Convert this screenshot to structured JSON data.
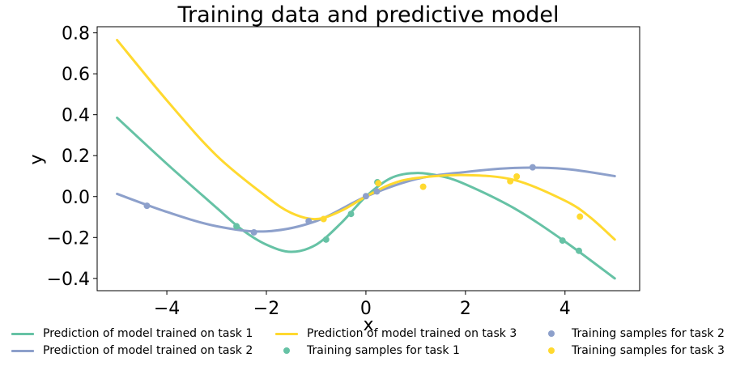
{
  "chart_data": {
    "type": "line",
    "title": "Training data and predictive model",
    "xlabel": "x",
    "ylabel": "y",
    "xlim": [
      -5.4,
      5.5
    ],
    "ylim": [
      -0.46,
      0.83
    ],
    "xticks": [
      -4,
      -2,
      0,
      2,
      4
    ],
    "yticks": [
      -0.4,
      -0.2,
      0.0,
      0.2,
      0.4,
      0.6,
      0.8
    ],
    "xtick_labels": [
      "−4",
      "−2",
      "0",
      "2",
      "4"
    ],
    "ytick_labels": [
      "−0.4",
      "−0.2",
      "0.0",
      "0.2",
      "0.4",
      "0.6",
      "0.8"
    ],
    "grid": false,
    "legend_position": "bottom",
    "colors": {
      "task1": "#66c2a5",
      "task2": "#8da0cb",
      "task3": "#ffd92f"
    },
    "series": [
      {
        "name": "Prediction of model trained on task 1",
        "kind": "line",
        "color": "#66c2a5",
        "x": [
          -5,
          -4,
          -3,
          -2.5,
          -2,
          -1.5,
          -1,
          -0.5,
          0,
          0.5,
          1,
          1.5,
          2,
          3,
          4,
          5
        ],
        "y": [
          0.385,
          0.16,
          -0.055,
          -0.16,
          -0.235,
          -0.27,
          -0.235,
          -0.13,
          0.0,
          0.09,
          0.115,
          0.1,
          0.06,
          -0.06,
          -0.22,
          -0.4
        ]
      },
      {
        "name": "Prediction of model trained on task 2",
        "kind": "line",
        "color": "#8da0cb",
        "x": [
          -5,
          -4,
          -3,
          -2,
          -1,
          0,
          1,
          2,
          3,
          4,
          5
        ],
        "y": [
          0.013,
          -0.075,
          -0.145,
          -0.17,
          -0.12,
          0.0,
          0.085,
          0.12,
          0.14,
          0.135,
          0.1
        ]
      },
      {
        "name": "Prediction of model trained on task 3",
        "kind": "line",
        "color": "#ffd92f",
        "x": [
          -5,
          -4,
          -3,
          -2,
          -1.5,
          -1,
          -0.5,
          0,
          0.5,
          1,
          2,
          3,
          4,
          4.5,
          5
        ],
        "y": [
          0.765,
          0.47,
          0.2,
          0.0,
          -0.08,
          -0.11,
          -0.07,
          0.0,
          0.06,
          0.09,
          0.105,
          0.08,
          -0.02,
          -0.1,
          -0.21
        ]
      },
      {
        "name": "Training samples for task 1",
        "kind": "scatter",
        "color": "#66c2a5",
        "x": [
          -2.6,
          -0.8,
          -0.3,
          0.23,
          3.95,
          4.28
        ],
        "y": [
          -0.145,
          -0.21,
          -0.085,
          0.07,
          -0.215,
          -0.265
        ]
      },
      {
        "name": "Training samples for task 2",
        "kind": "scatter",
        "color": "#8da0cb",
        "x": [
          -4.4,
          -2.25,
          -1.15,
          0.0,
          0.22,
          3.35
        ],
        "y": [
          -0.045,
          -0.175,
          -0.12,
          0.002,
          0.025,
          0.143
        ]
      },
      {
        "name": "Training samples for task 3",
        "kind": "scatter",
        "color": "#ffd92f",
        "x": [
          -0.85,
          0.25,
          1.15,
          2.9,
          3.03,
          4.3
        ],
        "y": [
          -0.11,
          0.065,
          0.048,
          0.075,
          0.098,
          -0.098
        ]
      }
    ]
  },
  "legend": {
    "items": [
      {
        "label": "Prediction of model trained on task 1",
        "kind": "line",
        "color": "#66c2a5"
      },
      {
        "label": "Prediction of model trained on task 2",
        "kind": "line",
        "color": "#8da0cb"
      },
      {
        "label": "Prediction of model trained on task 3",
        "kind": "line",
        "color": "#ffd92f"
      },
      {
        "label": "Training samples for task 1",
        "kind": "dot",
        "color": "#66c2a5"
      },
      {
        "label": "Training samples for task 2",
        "kind": "dot",
        "color": "#8da0cb"
      },
      {
        "label": "Training samples for task 3",
        "kind": "dot",
        "color": "#ffd92f"
      }
    ]
  }
}
